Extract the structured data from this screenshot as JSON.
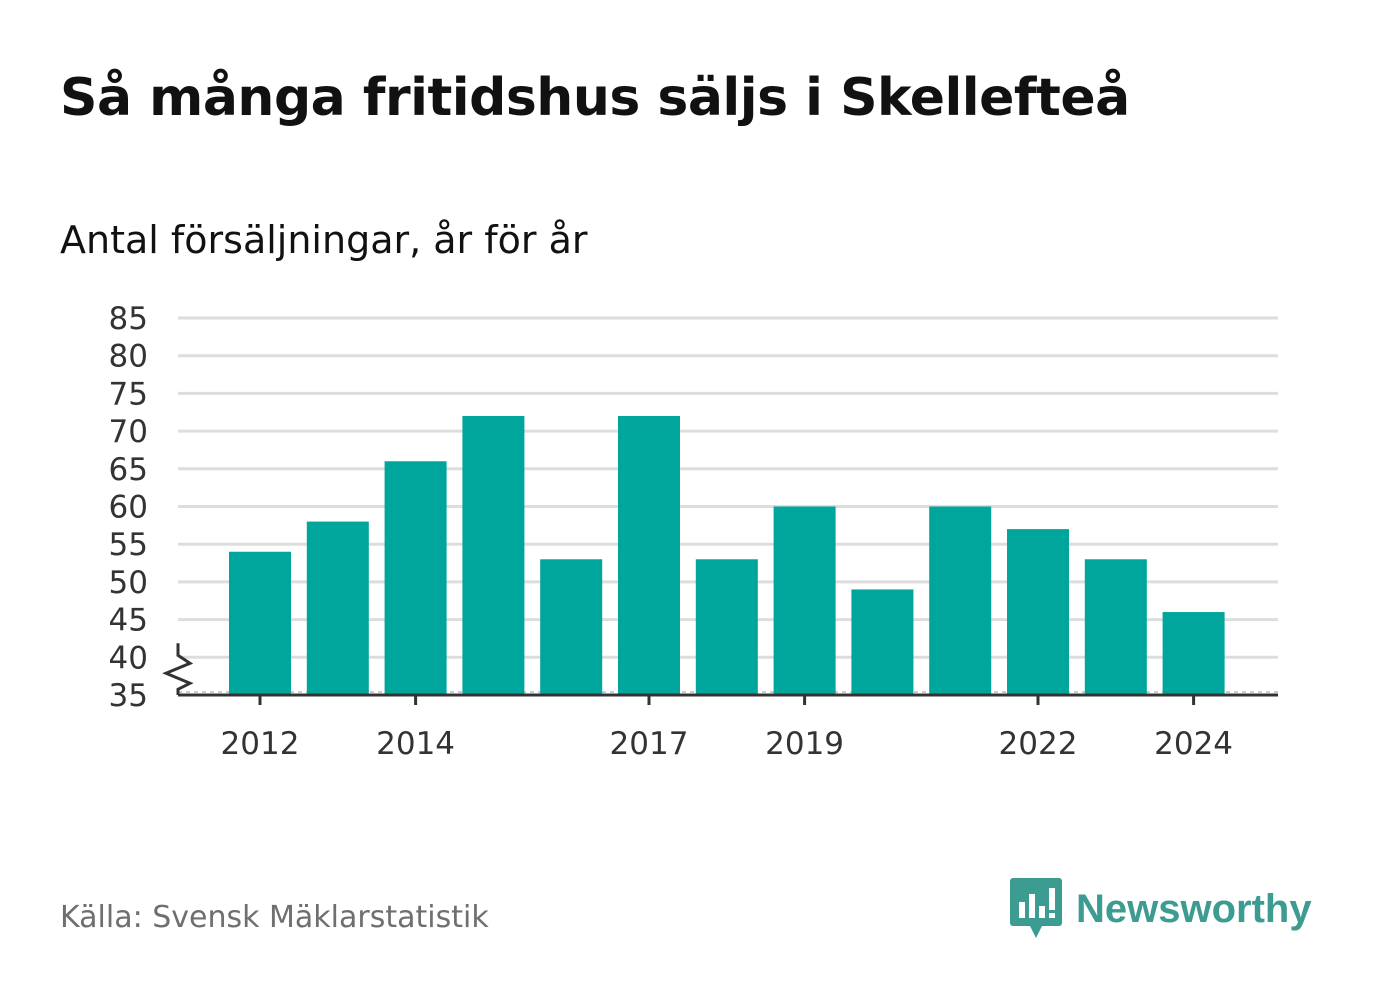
{
  "title": "Så många fritidshus säljs i Skellefteå",
  "subtitle": "Antal försäljningar, år för år",
  "source": "Källa: Svensk Mäklarstatistik",
  "brand": {
    "name": "Newsworthy",
    "icon": "newsworthy-logo-icon",
    "color": "#3d9c91"
  },
  "colors": {
    "bar": "#00a59b",
    "grid": "#dddddd",
    "axis": "#333333"
  },
  "chart_data": {
    "type": "bar",
    "title": "Så många fritidshus säljs i Skellefteå",
    "subtitle": "Antal försäljningar, år för år",
    "categories": [
      "2012",
      "2013",
      "2014",
      "2015",
      "2016",
      "2017",
      "2018",
      "2019",
      "2020",
      "2021",
      "2022",
      "2023",
      "2024"
    ],
    "values": [
      54,
      58,
      66,
      72,
      53,
      72,
      53,
      60,
      49,
      60,
      57,
      53,
      46
    ],
    "x_tick_labels": [
      "2012",
      "2014",
      "2017",
      "2019",
      "2022",
      "2024"
    ],
    "y_ticks": [
      35,
      40,
      45,
      50,
      55,
      60,
      65,
      70,
      75,
      80,
      85
    ],
    "ylim": [
      35,
      85
    ],
    "y_axis_break": true,
    "grid": true,
    "xlabel": "",
    "ylabel": ""
  }
}
